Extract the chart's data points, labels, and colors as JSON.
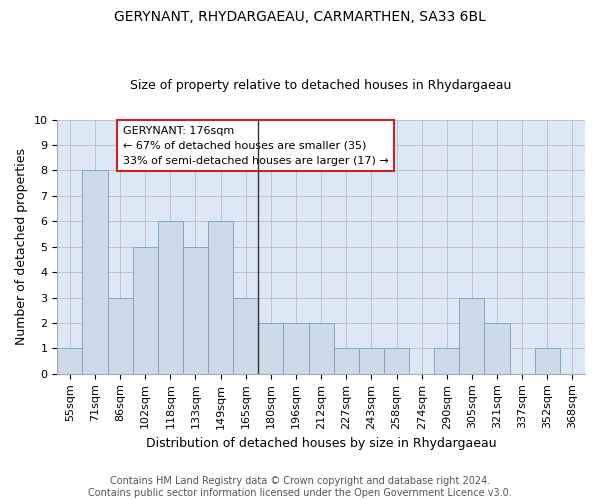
{
  "title1": "GERYNANT, RHYDARGAEAU, CARMARTHEN, SA33 6BL",
  "title2": "Size of property relative to detached houses in Rhydargaeau",
  "xlabel": "Distribution of detached houses by size in Rhydargaeau",
  "ylabel": "Number of detached properties",
  "categories": [
    "55sqm",
    "71sqm",
    "86sqm",
    "102sqm",
    "118sqm",
    "133sqm",
    "149sqm",
    "165sqm",
    "180sqm",
    "196sqm",
    "212sqm",
    "227sqm",
    "243sqm",
    "258sqm",
    "274sqm",
    "290sqm",
    "305sqm",
    "321sqm",
    "337sqm",
    "352sqm",
    "368sqm"
  ],
  "values": [
    1,
    8,
    3,
    5,
    6,
    5,
    6,
    3,
    2,
    2,
    2,
    1,
    1,
    1,
    0,
    1,
    3,
    2,
    0,
    1,
    0
  ],
  "bar_color": "#cddaea",
  "bar_edge_color": "#7fa8c8",
  "vline_x_index": 8,
  "vline_color": "#333333",
  "annotation_text": "GERYNANT: 176sqm\n← 67% of detached houses are smaller (35)\n33% of semi-detached houses are larger (17) →",
  "annotation_box_facecolor": "#ffffff",
  "annotation_border_color": "#cc2222",
  "ylim": [
    0,
    10
  ],
  "yticks": [
    0,
    1,
    2,
    3,
    4,
    5,
    6,
    7,
    8,
    9,
    10
  ],
  "grid_color": "#bbbbcc",
  "plot_bg_color": "#dce8f5",
  "fig_bg_color": "#ffffff",
  "footer": "Contains HM Land Registry data © Crown copyright and database right 2024.\nContains public sector information licensed under the Open Government Licence v3.0.",
  "title1_fontsize": 10,
  "title2_fontsize": 9,
  "ylabel_fontsize": 9,
  "xlabel_fontsize": 9,
  "tick_fontsize": 8,
  "annotation_fontsize": 8,
  "footer_fontsize": 7
}
